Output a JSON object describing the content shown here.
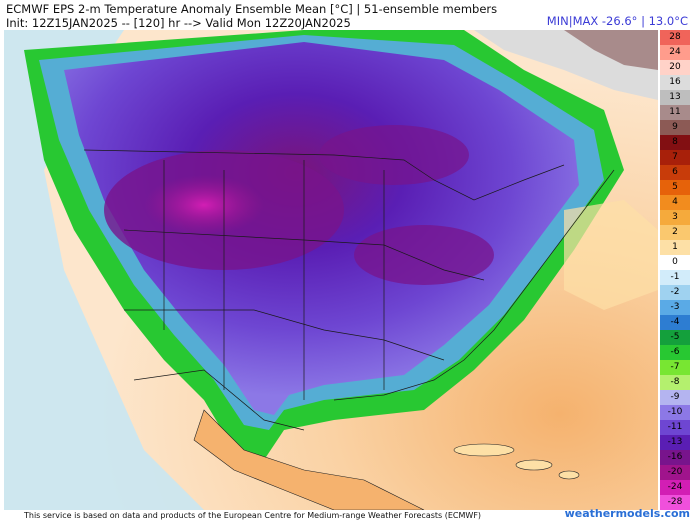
{
  "header": {
    "title": "ECMWF EPS 2-m Temperature Anomaly Ensemble Mean [°C] | 51-ensemble members",
    "init_line": "Init: 12Z15JAN2025 -- [120] hr --> Valid Mon 12Z20JAN2025",
    "minmax": "MIN|MAX -26.6° | 13.0°C"
  },
  "colorbar": {
    "labels": [
      "28",
      "24",
      "20",
      "16",
      "13",
      "11",
      "9",
      "8",
      "7",
      "6",
      "5",
      "4",
      "3",
      "2",
      "1",
      "0",
      "-1",
      "-2",
      "-3",
      "-4",
      "-5",
      "-6",
      "-7",
      "-8",
      "-9",
      "-10",
      "-11",
      "-13",
      "-16",
      "-20",
      "-24",
      "-28"
    ],
    "colors": [
      "#f0645a",
      "#ff9c8c",
      "#ffd2c8",
      "#dcdcdc",
      "#bebebe",
      "#a88b8b",
      "#8c5a55",
      "#820f12",
      "#a8200a",
      "#c83c0a",
      "#e6620a",
      "#f28c1e",
      "#f5aa3c",
      "#fac86e",
      "#fde0a6",
      "#ffffff",
      "#d2ecfa",
      "#9fd2f0",
      "#5aaae6",
      "#2d7dd2",
      "#14a03c",
      "#28c832",
      "#78e632",
      "#b4f06e",
      "#b4b4f0",
      "#8c78e6",
      "#6e46d2",
      "#5a1eb4",
      "#78148c",
      "#a0148c",
      "#d21eb4",
      "#f050dc"
    ]
  },
  "map": {
    "description_icons": [
      "land-anomaly-icon"
    ]
  },
  "footer": {
    "credit": "This service is based on data and products of the European Centre for Medium-range Weather Forecasts (ECMWF)",
    "brand": "weathermodels.com"
  }
}
